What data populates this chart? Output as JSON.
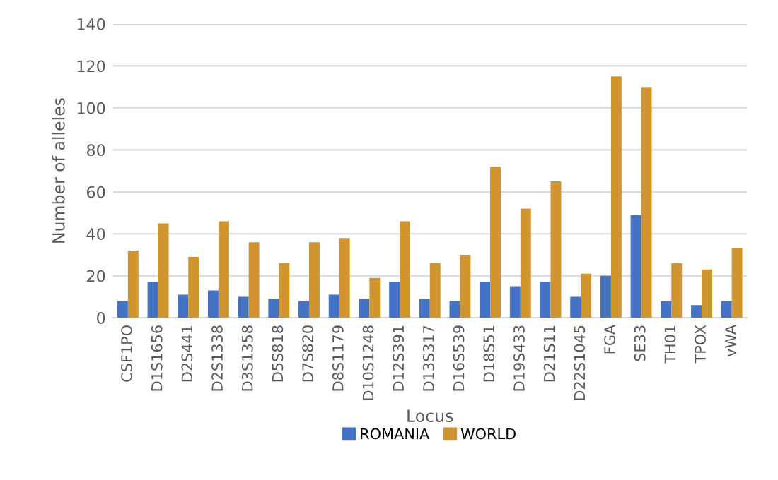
{
  "chart_data": {
    "type": "bar",
    "xlabel": "Locus",
    "ylabel": "Number of alleles",
    "categories": [
      "CSF1PO",
      "D1S1656",
      "D2S441",
      "D2S1338",
      "D3S1358",
      "D5S818",
      "D7S820",
      "D8S1179",
      "D10S1248",
      "D12S391",
      "D13S317",
      "D16S539",
      "D18S51",
      "D19S433",
      "D21S11",
      "D22S1045",
      "FGA",
      "SE33",
      "TH01",
      "TPOX",
      "vWA"
    ],
    "series": [
      {
        "name": "ROMANIA",
        "color": "#4472c4",
        "values": [
          8,
          17,
          11,
          13,
          10,
          9,
          8,
          11,
          9,
          17,
          9,
          8,
          17,
          15,
          17,
          10,
          20,
          49,
          8,
          6,
          8
        ]
      },
      {
        "name": "WORLD",
        "color": "#d0952e",
        "values": [
          32,
          45,
          29,
          46,
          36,
          26,
          36,
          38,
          19,
          46,
          26,
          30,
          72,
          52,
          65,
          21,
          115,
          110,
          26,
          23,
          33
        ]
      }
    ],
    "ylim": [
      0,
      140
    ],
    "yticks": [
      0,
      20,
      40,
      60,
      80,
      100,
      120,
      140
    ],
    "grid": "y",
    "legend": "bottom"
  }
}
